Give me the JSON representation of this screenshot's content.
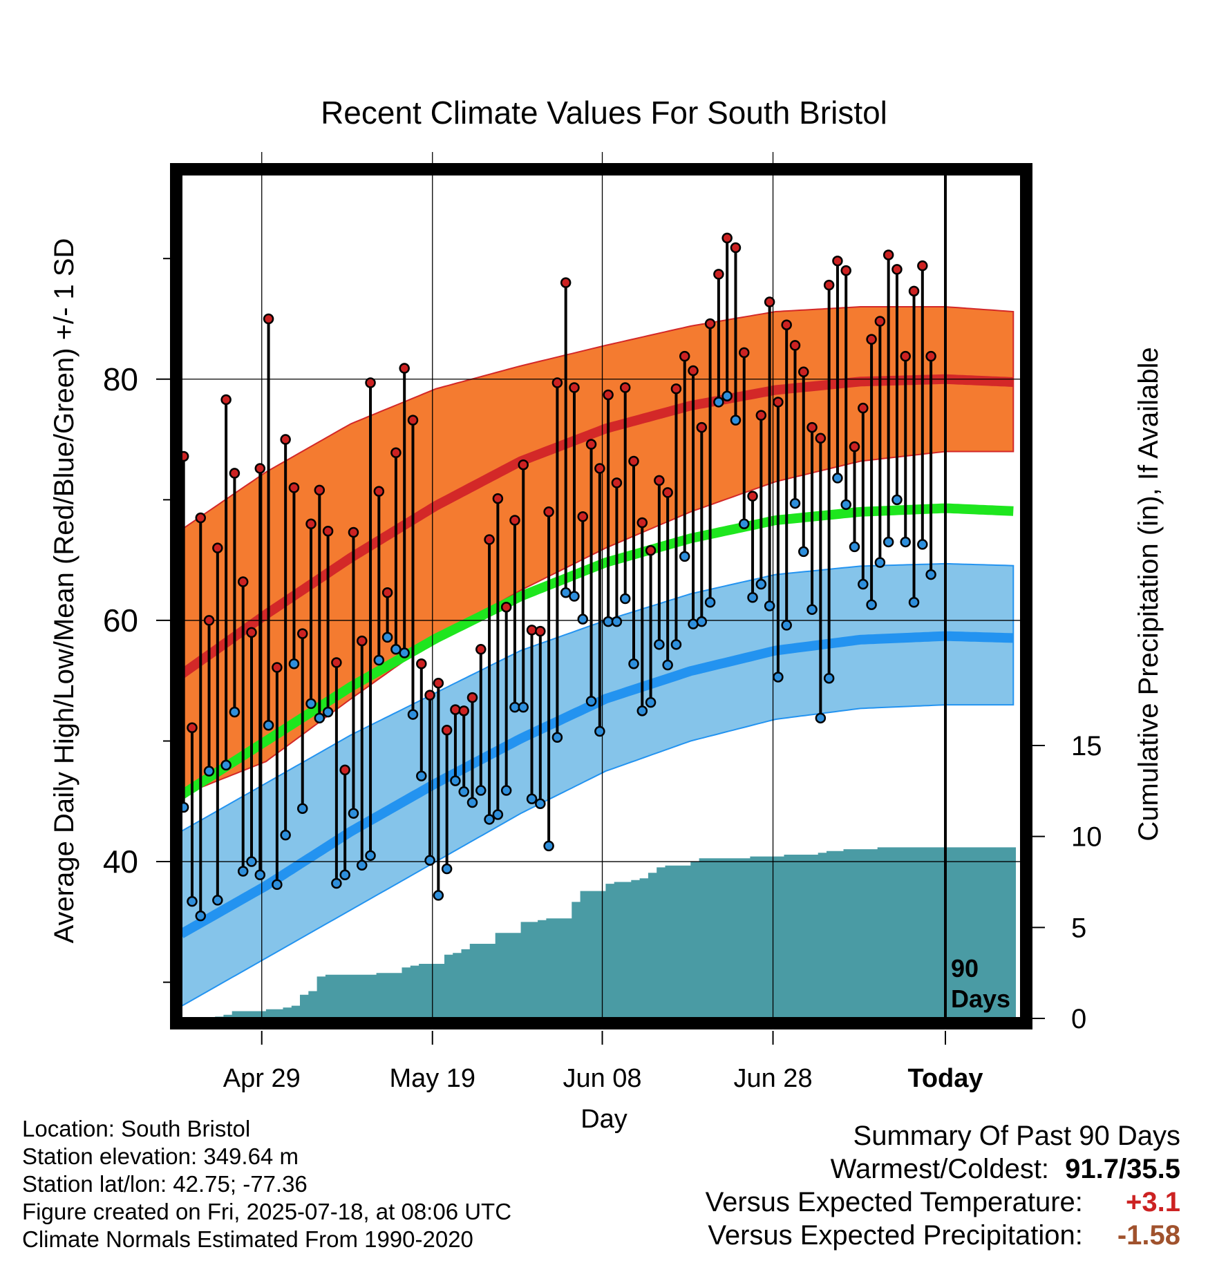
{
  "chart_data": {
    "type": "line",
    "title": "Recent Climate Values For South Bristol",
    "xlabel": "Day",
    "ylabel": "Average Daily High/Low/Mean (Red/Blue/Green) +/- 1 SD",
    "y2label": "Cumulative Precipitation (in), If Available",
    "x_ticks": [
      "Apr 29",
      "May 19",
      "Jun 08",
      "Jun 28",
      "Today"
    ],
    "y_ticks": [
      40,
      60,
      80
    ],
    "y2_ticks": [
      0,
      5,
      10,
      15
    ],
    "ylim": [
      27,
      97
    ],
    "y2lim": [
      0,
      46.4
    ],
    "days_shown": 90,
    "marker_label": "90 Days",
    "normals": {
      "day": [
        0,
        10,
        20,
        30,
        40,
        50,
        60,
        70,
        80,
        90,
        100
      ],
      "high_mean": [
        55.5,
        60.5,
        65.2,
        69.5,
        73.2,
        75.9,
        77.8,
        79.1,
        79.8,
        80.0,
        79.7
      ],
      "high_upper": [
        67.5,
        72.3,
        76.3,
        79.2,
        81.1,
        82.8,
        84.4,
        85.6,
        86.0,
        86.0,
        85.5
      ],
      "high_lower": [
        45.5,
        48.3,
        53.5,
        58.5,
        62.5,
        66.0,
        69.0,
        71.5,
        73.2,
        74.0,
        74.0
      ],
      "mean": [
        45.5,
        50.0,
        54.5,
        58.5,
        62.0,
        64.8,
        66.8,
        68.3,
        69.0,
        69.3,
        69.0
      ],
      "low_mean": [
        34.0,
        38.0,
        42.5,
        46.5,
        50.2,
        53.5,
        55.8,
        57.5,
        58.4,
        58.7,
        58.5
      ],
      "low_upper": [
        42.5,
        46.5,
        50.5,
        54.0,
        57.5,
        60.0,
        62.2,
        63.8,
        64.5,
        64.7,
        64.5
      ],
      "low_lower": [
        28.0,
        32.0,
        36.0,
        40.0,
        44.0,
        47.5,
        50.0,
        51.8,
        52.7,
        53.0,
        53.0
      ]
    },
    "series": [
      {
        "name": "High",
        "values": [
          73.6,
          51.1,
          68.5,
          60.0,
          66.0,
          78.3,
          72.2,
          63.2,
          59.0,
          72.6,
          85.0,
          56.1,
          75.0,
          71.0,
          58.9,
          68.0,
          70.8,
          67.4,
          56.5,
          47.6,
          67.3,
          58.3,
          79.7,
          70.7,
          62.3,
          73.9,
          80.9,
          76.6,
          56.4,
          53.8,
          54.8,
          50.9,
          52.6,
          52.5,
          53.6,
          57.6,
          66.7,
          70.1,
          61.1,
          68.3,
          72.9,
          59.2,
          59.1,
          69.0,
          79.7,
          88.0,
          79.3,
          68.6,
          74.6,
          72.6,
          78.7,
          71.4,
          79.3,
          73.2,
          68.1,
          65.8,
          71.6,
          70.6,
          79.2,
          81.9,
          80.7,
          76.0,
          84.6,
          88.7,
          91.7,
          90.9,
          82.2,
          70.3,
          77.0,
          86.4,
          78.1,
          84.5,
          82.8,
          80.6,
          76.0,
          75.1,
          87.8,
          89.8,
          89.0,
          74.4,
          77.6,
          83.3,
          84.8,
          90.3,
          89.1,
          81.9,
          87.3,
          89.4,
          81.9
        ]
      },
      {
        "name": "Low",
        "values": [
          44.5,
          36.7,
          35.5,
          47.5,
          36.8,
          48.0,
          52.4,
          39.2,
          40.0,
          38.9,
          51.3,
          38.1,
          42.2,
          56.4,
          44.4,
          53.1,
          51.9,
          52.4,
          38.2,
          38.9,
          44.0,
          39.7,
          40.5,
          56.7,
          58.6,
          57.6,
          57.3,
          52.2,
          47.1,
          40.1,
          37.2,
          39.4,
          46.7,
          45.8,
          44.9,
          45.9,
          43.5,
          43.9,
          45.9,
          52.8,
          52.8,
          45.2,
          44.8,
          41.3,
          50.3,
          62.3,
          62.0,
          60.1,
          53.3,
          50.8,
          59.9,
          59.9,
          61.8,
          56.4,
          52.5,
          53.2,
          58.0,
          56.3,
          58.0,
          65.3,
          59.7,
          59.9,
          61.5,
          78.1,
          78.6,
          76.6,
          68.0,
          61.9,
          63.0,
          61.2,
          55.3,
          59.6,
          69.7,
          65.7,
          60.9,
          51.9,
          55.2,
          71.8,
          69.6,
          66.1,
          63.0,
          61.3,
          64.8,
          66.5,
          70.0,
          66.5,
          61.5,
          66.3,
          63.8
        ]
      },
      {
        "name": "Cumulative Precipitation",
        "values": [
          0.0,
          0.0,
          0.0,
          0.0,
          0.1,
          0.2,
          0.4,
          0.4,
          0.4,
          0.4,
          0.5,
          0.5,
          0.6,
          0.7,
          1.3,
          1.5,
          2.3,
          2.4,
          2.4,
          2.4,
          2.4,
          2.4,
          2.4,
          2.5,
          2.5,
          2.5,
          2.8,
          2.9,
          3.0,
          3.0,
          3.0,
          3.5,
          3.6,
          3.8,
          4.1,
          4.1,
          4.1,
          4.7,
          4.7,
          4.7,
          5.3,
          5.3,
          5.4,
          5.5,
          5.5,
          5.5,
          6.4,
          7.0,
          7.0,
          7.0,
          7.4,
          7.5,
          7.5,
          7.6,
          7.7,
          8.0,
          8.3,
          8.4,
          8.4,
          8.4,
          8.6,
          8.8,
          8.8,
          8.8,
          8.8,
          8.8,
          8.8,
          8.9,
          8.9,
          8.9,
          8.9,
          9.0,
          9.0,
          9.0,
          9.0,
          9.1,
          9.2,
          9.2,
          9.3,
          9.3,
          9.3,
          9.3,
          9.4,
          9.4,
          9.4,
          9.4,
          9.4,
          9.4,
          9.4,
          9.4,
          9.4
        ]
      }
    ],
    "colors": {
      "high_band": "#f47b30",
      "high_line": "#d32828",
      "mean_line": "#1ee61e",
      "low_band": "#85c4ea",
      "low_line": "#2393f0",
      "precip": "#4a9ba4",
      "high_marker": "#cc2222",
      "low_marker": "#2e8fdc",
      "frame": "#000000"
    }
  },
  "info": {
    "location": "Location: South Bristol",
    "elevation": "Station elevation: 349.64 m",
    "latlon": "Station lat/lon: 42.75; -77.36",
    "created": "Figure created on Fri, 2025-07-18, at 08:06 UTC",
    "normals": "Climate Normals Estimated From 1990-2020"
  },
  "summary": {
    "heading": "Summary Of Past 90 Days",
    "warm_cold_label": "Warmest/Coldest:",
    "warm_cold_value": "91.7/35.5",
    "temp_label": "Versus Expected Temperature:",
    "temp_value": "+3.1",
    "temp_color": "#cc2222",
    "precip_label": "Versus Expected Precipitation:",
    "precip_value": "-1.58",
    "precip_color": "#a0522d"
  }
}
